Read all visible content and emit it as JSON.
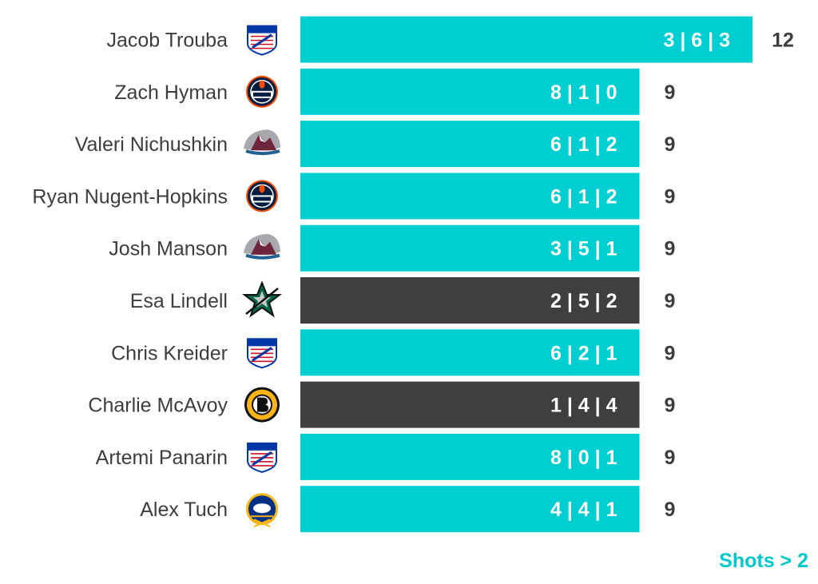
{
  "colors": {
    "bar_default": "#00cfd2",
    "bar_highlight": "#3f3f3f",
    "name_text": "#3d3d3d",
    "total_text": "#3d3d3d",
    "footnote": "#00c9cc"
  },
  "footnote": "Shots > 2",
  "chart_data": {
    "type": "bar",
    "orientation": "horizontal",
    "xlim": [
      0,
      12
    ],
    "grid": false,
    "legend": "none",
    "categories": [
      "Jacob Trouba",
      "Zach Hyman",
      "Valeri Nichushkin",
      "Ryan Nugent-Hopkins",
      "Josh Manson",
      "Esa Lindell",
      "Chris Kreider",
      "Charlie McAvoy",
      "Artemi Panarin",
      "Alex Tuch"
    ],
    "values": [
      12,
      9,
      9,
      9,
      9,
      9,
      9,
      9,
      9,
      9
    ],
    "bar_labels": [
      "3 | 6 | 3",
      "8 | 1 | 0",
      "6 | 1 | 2",
      "6 | 1 | 2",
      "3 | 5 | 1",
      "2 | 5 | 2",
      "6 | 2 | 1",
      "1 | 4 | 4",
      "8 | 0 | 1",
      "4 | 4 | 1"
    ],
    "teams": [
      "rangers",
      "oilers",
      "avalanche",
      "oilers",
      "avalanche",
      "stars",
      "rangers",
      "bruins",
      "rangers",
      "sabres"
    ],
    "highlighted": [
      false,
      false,
      false,
      false,
      false,
      true,
      false,
      true,
      false,
      false
    ]
  }
}
